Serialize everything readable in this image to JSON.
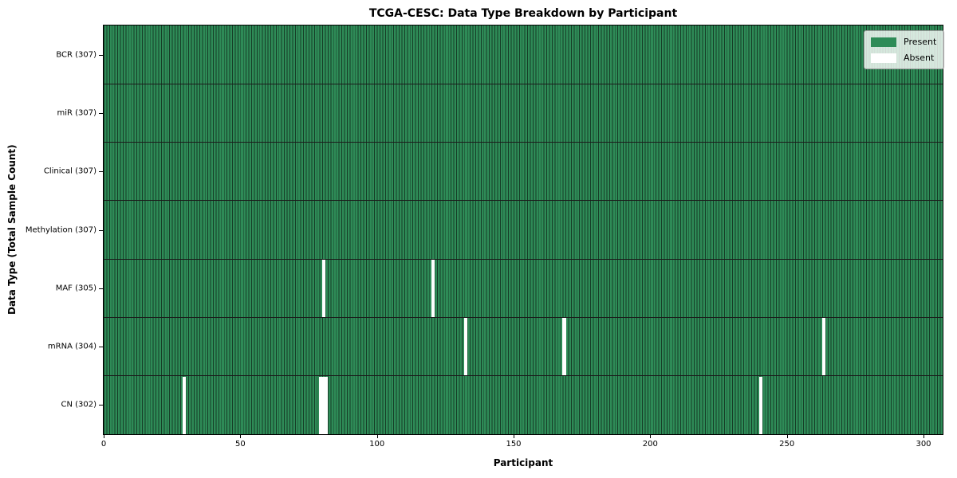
{
  "chart_data": {
    "type": "heatmap",
    "title": "TCGA-CESC: Data Type Breakdown by Participant",
    "xlabel": "Participant",
    "ylabel": "Data Type (Total Sample Count)",
    "x_ticks": [
      0,
      50,
      100,
      150,
      200,
      250,
      300
    ],
    "xlim": [
      0,
      307
    ],
    "total_participants": 307,
    "grid": false,
    "rows": [
      {
        "data_type": "BCR",
        "label": "BCR (307)",
        "total": 307,
        "absent_participants": []
      },
      {
        "data_type": "miR",
        "label": "miR (307)",
        "total": 307,
        "absent_participants": []
      },
      {
        "data_type": "Clinical",
        "label": "Clinical (307)",
        "total": 307,
        "absent_participants": []
      },
      {
        "data_type": "Methylation",
        "label": "Methylation (307)",
        "total": 307,
        "absent_participants": []
      },
      {
        "data_type": "MAF",
        "label": "MAF (305)",
        "total": 305,
        "absent_participants": [
          80,
          120
        ]
      },
      {
        "data_type": "mRNA",
        "label": "mRNA (304)",
        "total": 304,
        "absent_participants": [
          132,
          168,
          263
        ]
      },
      {
        "data_type": "CN",
        "label": "CN (302)",
        "total": 302,
        "absent_participants": [
          29,
          79,
          80,
          81,
          240
        ]
      }
    ],
    "legend": {
      "position": "upper right",
      "entries": [
        {
          "label": "Present",
          "color": "#2e8b57"
        },
        {
          "label": "Absent",
          "color": "#ffffff"
        }
      ]
    },
    "colors": {
      "present": "#2e8b57",
      "absent": "#ffffff",
      "column_edge": "#163d27",
      "row_separator": "#1b1b1b",
      "plot_border": "#000000",
      "background": "#ffffff"
    }
  }
}
